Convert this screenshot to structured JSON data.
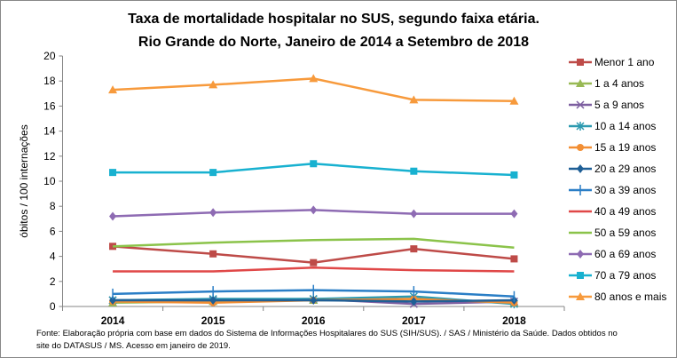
{
  "chart_data": {
    "type": "line",
    "title": [
      "Taxa de mortalidade hospitalar no SUS, segundo faixa etária.",
      "Rio Grande do Norte, Janeiro de 2014 a Setembro de 2018"
    ],
    "xlabel": "",
    "ylabel": "óbitos / 100 internações",
    "ylim": [
      0,
      20
    ],
    "yticks": [
      0,
      2,
      4,
      6,
      8,
      10,
      12,
      14,
      16,
      18,
      20
    ],
    "categories": [
      "2014",
      "2015",
      "2016",
      "2017",
      "2018"
    ],
    "grid": false,
    "legend": "right",
    "series": [
      {
        "name": "Menor 1 ano",
        "color": "#BE4B48",
        "marker": "square",
        "values": [
          4.8,
          4.2,
          3.5,
          4.6,
          3.8
        ]
      },
      {
        "name": "1 a 4 anos",
        "color": "#98B954",
        "marker": "triangle",
        "values": [
          0.3,
          0.4,
          0.5,
          0.6,
          0.3
        ]
      },
      {
        "name": "5 a 9 anos",
        "color": "#7D5FA0",
        "marker": "x",
        "values": [
          0.5,
          0.5,
          0.6,
          0.2,
          0.4
        ]
      },
      {
        "name": "10 a 14 anos",
        "color": "#2C9AB0",
        "marker": "star",
        "values": [
          0.5,
          0.6,
          0.6,
          0.8,
          0.2
        ]
      },
      {
        "name": "15 a 19 anos",
        "color": "#F28E33",
        "marker": "circle",
        "values": [
          0.4,
          0.3,
          0.5,
          0.6,
          0.3
        ]
      },
      {
        "name": "20 a 29 anos",
        "color": "#1F5F96",
        "marker": "diamond",
        "values": [
          0.5,
          0.5,
          0.5,
          0.4,
          0.5
        ]
      },
      {
        "name": "30 a 39 anos",
        "color": "#2A7EC6",
        "marker": "plus",
        "values": [
          1.0,
          1.2,
          1.3,
          1.2,
          0.8
        ]
      },
      {
        "name": "40 a 49 anos",
        "color": "#E04848",
        "marker": "none",
        "values": [
          2.8,
          2.8,
          3.1,
          2.9,
          2.8
        ]
      },
      {
        "name": "50 a 59 anos",
        "color": "#8BC34A",
        "marker": "none",
        "values": [
          4.8,
          5.1,
          5.3,
          5.4,
          4.7
        ]
      },
      {
        "name": "60 a 69 anos",
        "color": "#8E6BB3",
        "marker": "diamond",
        "values": [
          7.2,
          7.5,
          7.7,
          7.4,
          7.4
        ]
      },
      {
        "name": "70 a 79 anos",
        "color": "#18B1D0",
        "marker": "square",
        "values": [
          10.7,
          10.7,
          11.4,
          10.8,
          10.5
        ]
      },
      {
        "name": "80 anos e mais",
        "color": "#F79A3C",
        "marker": "triangle",
        "values": [
          17.3,
          17.7,
          18.2,
          16.5,
          16.4
        ]
      }
    ],
    "source": [
      "Fonte: Elaboração própria com base em dados do  Sistema de Informações Hospitalares do SUS (SIH/SUS). / SAS / Ministério da Saúde. Dados obtidos no",
      "site do DATASUS / MS. Acesso em janeiro de 2019."
    ]
  }
}
